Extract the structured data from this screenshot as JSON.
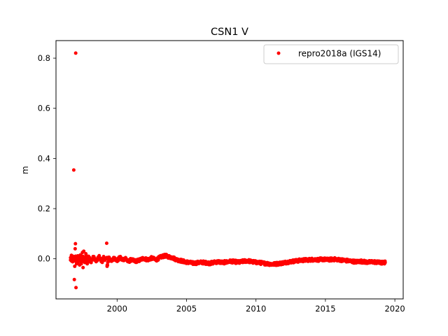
{
  "chart_data": {
    "type": "scatter",
    "title": "CSN1 V",
    "xlabel": "",
    "ylabel": "m",
    "xlim": [
      1995.6,
      2020.6
    ],
    "ylim": [
      -0.16,
      0.87
    ],
    "xticks": [
      2000,
      2005,
      2010,
      2015,
      2020
    ],
    "yticks": [
      0.0,
      0.2,
      0.4,
      0.6,
      0.8
    ],
    "xtick_labels": [
      "2000",
      "2005",
      "2010",
      "2015",
      "2020"
    ],
    "ytick_labels": [
      "0.0",
      "0.2",
      "0.4",
      "0.6",
      "0.8"
    ],
    "grid": false,
    "legend_position": "top-right",
    "series": [
      {
        "name": "repro2018a (IGS14)",
        "color": "#ff0000",
        "marker": "circle",
        "points": [
          [
            1996.65,
            -0.005
          ],
          [
            1996.68,
            0.002
          ],
          [
            1996.72,
            -0.009
          ],
          [
            1996.76,
            0.004
          ],
          [
            1996.8,
            -0.012
          ],
          [
            1996.84,
            0.003
          ],
          [
            1996.88,
            0.354
          ],
          [
            1996.92,
            -0.083
          ],
          [
            1996.95,
            -0.03
          ],
          [
            1996.98,
            0.04
          ],
          [
            1997.0,
            0.06
          ],
          [
            1997.02,
            0.82
          ],
          [
            1997.04,
            -0.115
          ],
          [
            1997.08,
            -0.02
          ],
          [
            1997.12,
            0.01
          ],
          [
            1997.18,
            -0.015
          ],
          [
            1997.25,
            0.008
          ],
          [
            1997.3,
            -0.025
          ],
          [
            1997.35,
            0.015
          ],
          [
            1997.42,
            -0.02
          ],
          [
            1997.5,
            0.025
          ],
          [
            1997.55,
            -0.035
          ],
          [
            1997.6,
            0.03
          ],
          [
            1997.68,
            -0.015
          ],
          [
            1997.75,
            0.02
          ],
          [
            1997.85,
            -0.02
          ],
          [
            1997.95,
            0.01
          ],
          [
            1998.1,
            -0.012
          ],
          [
            1998.3,
            0.006
          ],
          [
            1998.5,
            -0.01
          ],
          [
            1998.7,
            0.008
          ],
          [
            1998.9,
            -0.012
          ],
          [
            1999.05,
            0.005
          ],
          [
            1999.25,
            0.062
          ],
          [
            1999.28,
            -0.03
          ],
          [
            1999.4,
            0.006
          ],
          [
            1999.6,
            -0.01
          ],
          [
            1999.8,
            0.004
          ],
          [
            2000.0,
            -0.008
          ],
          [
            2000.2,
            0.005
          ],
          [
            2000.4,
            -0.006
          ],
          [
            2000.6,
            0.003
          ],
          [
            2000.8,
            -0.012
          ],
          [
            2001.0,
            -0.004
          ],
          [
            2001.3,
            -0.01
          ],
          [
            2001.6,
            -0.006
          ],
          [
            2001.9,
            0.002
          ],
          [
            2002.2,
            -0.004
          ],
          [
            2002.5,
            0.003
          ],
          [
            2002.8,
            -0.005
          ],
          [
            2003.1,
            0.006
          ],
          [
            2003.3,
            0.01
          ],
          [
            2003.5,
            0.012
          ],
          [
            2003.7,
            0.008
          ],
          [
            2004.0,
            0.004
          ],
          [
            2004.3,
            -0.004
          ],
          [
            2004.6,
            -0.008
          ],
          [
            2004.9,
            -0.012
          ],
          [
            2005.2,
            -0.015
          ],
          [
            2005.5,
            -0.018
          ],
          [
            2005.8,
            -0.016
          ],
          [
            2006.1,
            -0.014
          ],
          [
            2006.4,
            -0.016
          ],
          [
            2006.7,
            -0.018
          ],
          [
            2007.0,
            -0.014
          ],
          [
            2007.3,
            -0.012
          ],
          [
            2007.6,
            -0.015
          ],
          [
            2007.9,
            -0.013
          ],
          [
            2008.2,
            -0.01
          ],
          [
            2008.5,
            -0.012
          ],
          [
            2008.8,
            -0.014
          ],
          [
            2009.1,
            -0.01
          ],
          [
            2009.4,
            -0.008
          ],
          [
            2009.7,
            -0.012
          ],
          [
            2010.0,
            -0.014
          ],
          [
            2010.3,
            -0.016
          ],
          [
            2010.6,
            -0.018
          ],
          [
            2010.9,
            -0.02
          ],
          [
            2011.2,
            -0.022
          ],
          [
            2011.5,
            -0.02
          ],
          [
            2011.8,
            -0.018
          ],
          [
            2012.1,
            -0.015
          ],
          [
            2012.4,
            -0.012
          ],
          [
            2012.7,
            -0.01
          ],
          [
            2013.0,
            -0.008
          ],
          [
            2013.3,
            -0.006
          ],
          [
            2013.6,
            -0.005
          ],
          [
            2013.9,
            -0.004
          ],
          [
            2014.2,
            -0.003
          ],
          [
            2014.5,
            -0.004
          ],
          [
            2014.8,
            -0.002
          ],
          [
            2015.1,
            -0.004
          ],
          [
            2015.4,
            -0.003
          ],
          [
            2015.7,
            -0.002
          ],
          [
            2016.0,
            -0.004
          ],
          [
            2016.3,
            -0.006
          ],
          [
            2016.6,
            -0.008
          ],
          [
            2016.9,
            -0.01
          ],
          [
            2017.2,
            -0.012
          ],
          [
            2017.5,
            -0.01
          ],
          [
            2017.8,
            -0.012
          ],
          [
            2018.1,
            -0.014
          ],
          [
            2018.4,
            -0.012
          ],
          [
            2018.7,
            -0.014
          ],
          [
            2019.0,
            -0.016
          ],
          [
            2019.3,
            -0.015
          ]
        ]
      }
    ]
  }
}
